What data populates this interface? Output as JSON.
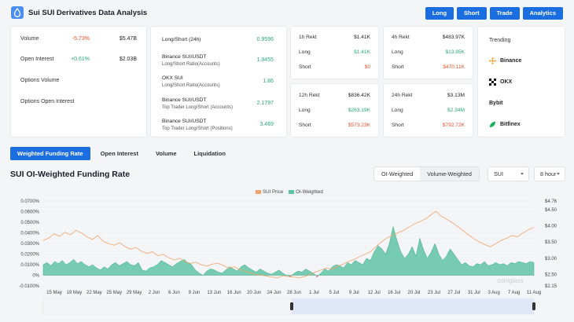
{
  "header": {
    "title": "Sui SUI Derivatives Data Analysis",
    "nav": [
      "Long",
      "Short",
      "Trade",
      "Analytics"
    ]
  },
  "volume_card": {
    "rows": [
      {
        "label": "Volume",
        "change": "-5.73%",
        "value": "$5.47B",
        "dir": "neg"
      },
      {
        "label": "Open Interest",
        "change": "+0.61%",
        "value": "$2.03B",
        "dir": "pos"
      },
      {
        "label": "Options Volume",
        "change": "",
        "value": "",
        "dir": ""
      },
      {
        "label": "Options Open Interest",
        "change": "",
        "value": "",
        "dir": ""
      }
    ]
  },
  "ratio_card": {
    "rows": [
      {
        "label": "Long/Short (24h)",
        "sub": "",
        "value": "0.9596"
      },
      {
        "label": "Binance SUI/USDT",
        "sub": "Long/Short Ratio(Accounts)",
        "value": "1.9455"
      },
      {
        "label": "OKX SUI",
        "sub": "Long/Short Ratio(Accounts)",
        "value": "1.86"
      },
      {
        "label": "Binance SUI/USDT",
        "sub": "Top Trader Long/Short (Accounts)",
        "value": "2.1797"
      },
      {
        "label": "Binance SUI/USDT",
        "sub": "Top Trader Long/Short (Positions)",
        "value": "3.469"
      }
    ]
  },
  "rekt": {
    "h1": {
      "label": "1h Rekt",
      "total": "$1.41K",
      "long": "$1.41K",
      "short": "$0"
    },
    "h4": {
      "label": "4h Rekt",
      "total": "$483.97K",
      "long": "$13.85K",
      "short": "$470.11K"
    },
    "h12": {
      "label": "12h Rekt",
      "total": "$836.42K",
      "long": "$263.19K",
      "short": "$573.23K"
    },
    "h24": {
      "label": "24h Rekt",
      "total": "$3.13M",
      "long": "$2.34M",
      "short": "$792.72K"
    },
    "long_label": "Long",
    "short_label": "Short"
  },
  "trending": {
    "title": "Trending",
    "exchanges": [
      {
        "name": "Binance",
        "icon": "binance-icon",
        "color": "#f0a12b"
      },
      {
        "name": "OKX",
        "icon": "okx-icon",
        "color": "#111111"
      },
      {
        "name": "Bybit",
        "icon": "bybit-icon",
        "color": "#111111"
      },
      {
        "name": "Bitfinex",
        "icon": "bitfinex-icon",
        "color": "#16b157"
      }
    ]
  },
  "tabs": [
    "Weighted Funding Rate",
    "Open Interest",
    "Volume",
    "Liquidation"
  ],
  "active_tab": 0,
  "section_title": "SUI OI-Weighted Funding Rate",
  "controls": {
    "weighting": [
      "OI-Weighted",
      "Volume-Weighted"
    ],
    "weighting_selected": 0,
    "symbol": "SUI",
    "interval": "8 hour"
  },
  "watermark": "coinglass",
  "colors": {
    "accent": "#1a6ee0",
    "positive": "#2ca67a",
    "negative": "#e8512c",
    "area": "#5fc3a3",
    "price": "#f2a36b"
  },
  "chart_data": {
    "type": "area",
    "legend": [
      "SUI Price",
      "OI-Weighted"
    ],
    "x_ticks": [
      "15 May",
      "19 May",
      "22 May",
      "25 May",
      "29 May",
      "2 Jun",
      "6 Jun",
      "9 Jun",
      "13 Jun",
      "16 Jun",
      "20 Jun",
      "24 Jun",
      "28 Jun",
      "1 Jul",
      "5 Jul",
      "9 Jul",
      "12 Jul",
      "16 Jul",
      "20 Jul",
      "23 Jul",
      "27 Jul",
      "31 Jul",
      "3 Aug",
      "7 Aug",
      "11 Aug"
    ],
    "y_left_ticks": [
      "0.0700%",
      "0.0600%",
      "0.0500%",
      "0.0400%",
      "0.0300%",
      "0.0200%",
      "0.0100%",
      "0%",
      "-0.0100%"
    ],
    "y_left_range": [
      -0.01,
      0.07
    ],
    "y_right_ticks": [
      "$4.76",
      "$4.50",
      "$4.00",
      "$3.50",
      "$3.00",
      "$2.50",
      "$2.15"
    ],
    "y_right_range": [
      2.15,
      4.76
    ],
    "series": [
      {
        "name": "OI-Weighted",
        "unit": "%",
        "values": [
          0.01,
          0.012,
          0.009,
          0.013,
          0.011,
          0.014,
          0.01,
          0.012,
          0.015,
          0.011,
          0.013,
          0.01,
          0.008,
          0.01,
          0.007,
          0.005,
          0.008,
          0.006,
          0.01,
          0.012,
          0.009,
          0.011,
          0.013,
          0.01,
          0.009,
          0.012,
          0.005,
          0.004,
          0.007,
          0.008,
          0.01,
          0.014,
          0.012,
          0.01,
          0.008,
          0.011,
          0.013,
          0.015,
          0.012,
          0.01,
          0.005,
          0.002,
          0.0,
          0.004,
          0.006,
          0.005,
          0.003,
          0.002,
          0.005,
          0.008,
          0.006,
          0.004,
          0.008,
          0.01,
          0.007,
          0.005,
          0.003,
          0.006,
          0.004,
          0.002,
          0.001,
          0.003,
          0.005,
          0.002,
          0.0,
          -0.001,
          0.002,
          0.004,
          0.003,
          0.006,
          0.004,
          0.002,
          -0.001,
          0.002,
          0.006,
          0.004,
          0.008,
          0.01,
          0.009,
          0.007,
          0.012,
          0.01,
          0.014,
          0.012,
          0.01,
          0.016,
          0.014,
          0.022,
          0.028,
          0.025,
          0.02,
          0.03,
          0.046,
          0.033,
          0.022,
          0.016,
          0.02,
          0.027,
          0.018,
          0.035,
          0.024,
          0.016,
          0.022,
          0.03,
          0.02,
          0.014,
          0.018,
          0.025,
          0.02,
          0.015,
          0.01,
          0.012,
          0.009,
          0.008,
          0.011,
          0.01,
          0.013,
          0.009,
          0.01,
          0.012,
          0.01,
          0.011,
          0.009,
          0.012,
          0.011,
          0.013,
          0.012,
          0.011,
          0.013,
          0.012
        ]
      },
      {
        "name": "SUI Price",
        "unit": "$",
        "values": [
          3.55,
          3.62,
          3.75,
          3.68,
          3.8,
          3.72,
          3.86,
          3.78,
          3.66,
          3.58,
          3.7,
          3.52,
          3.45,
          3.4,
          3.48,
          3.36,
          3.28,
          3.33,
          3.22,
          3.15,
          3.2,
          3.08,
          3.12,
          3.02,
          2.95,
          3.0,
          2.9,
          2.84,
          2.88,
          2.8,
          2.76,
          2.82,
          2.85,
          2.78,
          2.7,
          2.74,
          2.66,
          2.6,
          2.55,
          2.5,
          2.48,
          2.45,
          2.42,
          2.4,
          2.46,
          2.44,
          2.42,
          2.4,
          2.44,
          2.5,
          2.58,
          2.64,
          2.7,
          2.66,
          2.75,
          2.82,
          2.9,
          2.96,
          3.05,
          3.12,
          3.2,
          3.35,
          3.5,
          3.62,
          3.7,
          3.78,
          3.85,
          3.95,
          4.05,
          4.12,
          4.2,
          4.32,
          4.45,
          4.3,
          4.2,
          4.1,
          3.98,
          3.85,
          3.72,
          3.6,
          3.5,
          3.42,
          3.35,
          3.45,
          3.55,
          3.62,
          3.7,
          3.66,
          3.78,
          3.88,
          3.95
        ]
      }
    ]
  }
}
